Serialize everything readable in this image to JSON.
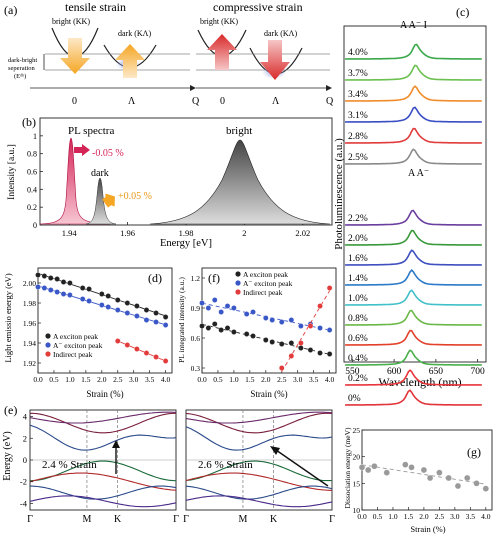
{
  "panel_labels": {
    "a": "(a)",
    "b": "(b)",
    "c": "(c)",
    "d": "(d)",
    "e": "(e)",
    "f": "(f)",
    "g": "(g)"
  },
  "panel_a": {
    "tensile_title": "tensile strain",
    "compressive_title": "compressive strain",
    "bright_label": "bright (KK)",
    "dark_label": "dark (KΛ)",
    "bright_label_right": "bright (KK)",
    "dark_label_right": "dark (KΛ)",
    "sep_label_1": "dark-bright",
    "sep_label_2": "seperation",
    "sep_label_3": "(Eᵈᵇ)",
    "tick_0": "0",
    "tick_lambda": "Λ",
    "tick_q": "Q",
    "tick_0_r": "0",
    "tick_lambda_r": "Λ",
    "tick_q_r": "Q"
  },
  "panel_b": {
    "ylabel": "Intensity [a.u.]",
    "xlabel": "Energy [eV]",
    "pl_label": "PL spectra",
    "dark_label": "dark",
    "bright_label": "bright",
    "minus_label": "-0.05 %",
    "plus_label": "+0.05 %"
  },
  "panel_c": {
    "ylabel": "Photoluminescence (a.u.)",
    "xlabel": "Wavelength (nm)",
    "peak_top": "A  A⁻  I",
    "peak_mid": "A  A⁻",
    "strains": [
      "4.0%",
      "3.7%",
      "3.4%",
      "3.1%",
      "2.8%",
      "2.5%",
      "2.2%",
      "2.0%",
      "1.6%",
      "1.4%",
      "1.0%",
      "0.8%",
      "0.6%",
      "0.4%",
      "0.2%",
      "0%"
    ],
    "colors": [
      "#3aa84a",
      "#6cc050",
      "#f28b2b",
      "#3a4ec4",
      "#e23b3b",
      "#8a8a8a",
      "#6a3e9e",
      "#3a9a3a",
      "#3f4fc0",
      "#2c7ac8",
      "#40c0c8",
      "#6ab848",
      "#e2402a",
      "#4ab04c",
      "#e8343a",
      "#e2343a"
    ],
    "xticks": [
      "550",
      "600",
      "650",
      "700"
    ]
  },
  "chart_data": [
    {
      "type": "line",
      "title": "",
      "xlabel": "Energy [eV]",
      "ylabel": "Intensity [a.u.]",
      "xlim": [
        1.93,
        2.03
      ],
      "ylim": [
        0,
        1.2
      ],
      "xticks": [
        "1.94",
        "1.96",
        "1.98",
        "2",
        "2.02"
      ],
      "yticks": [
        "0",
        "0.2",
        "0.4",
        "0.6",
        "0.8",
        "1"
      ]
    },
    {
      "type": "scatter",
      "xlabel": "Strain (%)",
      "ylabel": "Light emissio energy (eV)",
      "xlim": [
        0,
        4.2
      ],
      "ylim": [
        1.91,
        2.015
      ],
      "xticks": [
        "0.0",
        "0.5",
        "1.0",
        "1.5",
        "2.0",
        "2.5",
        "3.0",
        "3.5",
        "4.0"
      ],
      "yticks": [
        "1.92",
        "1.94",
        "1.96",
        "1.98",
        "2.00"
      ],
      "series": [
        {
          "name": "A exciton peak",
          "color": "#222222",
          "x": [
            0,
            0.2,
            0.4,
            0.6,
            0.8,
            1.0,
            1.4,
            1.6,
            2.0,
            2.2,
            2.5,
            2.8,
            3.1,
            3.4,
            3.7,
            4.0
          ],
          "y": [
            2.008,
            2.007,
            2.005,
            2.004,
            2.001,
            2.0,
            1.995,
            1.994,
            1.989,
            1.987,
            1.983,
            1.98,
            1.977,
            1.973,
            1.97,
            1.966
          ]
        },
        {
          "name": "A⁻ exciton peak",
          "color": "#3a57c8",
          "x": [
            0,
            0.2,
            0.4,
            0.6,
            0.8,
            1.0,
            1.4,
            1.6,
            2.0,
            2.2,
            2.5,
            2.8,
            3.1,
            3.4,
            3.7,
            4.0
          ],
          "y": [
            1.996,
            1.995,
            1.993,
            1.991,
            1.989,
            1.988,
            1.984,
            1.982,
            1.978,
            1.976,
            1.973,
            1.97,
            1.967,
            1.963,
            1.961,
            1.958
          ]
        },
        {
          "name": "Indirect peak",
          "color": "#e23b3b",
          "x": [
            2.5,
            2.8,
            3.1,
            3.4,
            3.7,
            4.0
          ],
          "y": [
            1.942,
            1.938,
            1.934,
            1.93,
            1.926,
            1.922
          ]
        }
      ]
    },
    {
      "type": "scatter",
      "xlabel": "Strain (%)",
      "ylabel": "PL integrated intensity (a.u.)",
      "xlim": [
        0,
        4.2
      ],
      "ylim": [
        0.25,
        1.3
      ],
      "xticks": [
        "0.0",
        "0.5",
        "1.0",
        "1.5",
        "2.0",
        "2.5",
        "3.0",
        "3.5",
        "4.0"
      ],
      "yticks": [
        "0.3",
        "0.6",
        "0.9",
        "1.2"
      ],
      "series": [
        {
          "name": "A exciton peak",
          "color": "#222222",
          "x": [
            0,
            0.2,
            0.4,
            0.6,
            0.8,
            1.0,
            1.4,
            1.6,
            2.0,
            2.2,
            2.5,
            2.8,
            3.1,
            3.4,
            3.7,
            4.0
          ],
          "y": [
            0.72,
            0.7,
            0.74,
            0.68,
            0.7,
            0.66,
            0.64,
            0.62,
            0.58,
            0.56,
            0.54,
            0.55,
            0.5,
            0.48,
            0.45,
            0.44
          ]
        },
        {
          "name": "A⁻ exciton peak",
          "color": "#3a57c8",
          "x": [
            0,
            0.2,
            0.4,
            0.6,
            0.8,
            1.0,
            1.4,
            1.6,
            2.0,
            2.2,
            2.5,
            2.8,
            3.1,
            3.4,
            3.7,
            4.0
          ],
          "y": [
            0.95,
            0.9,
            0.98,
            0.86,
            0.92,
            0.9,
            0.84,
            0.86,
            0.8,
            0.78,
            0.76,
            0.78,
            0.72,
            0.74,
            0.7,
            0.68
          ]
        },
        {
          "name": "Indirect peak",
          "color": "#e23b3b",
          "x": [
            2.5,
            2.8,
            3.1,
            3.4,
            3.7,
            4.0
          ],
          "y": [
            0.3,
            0.42,
            0.55,
            0.72,
            0.92,
            1.1
          ]
        }
      ]
    },
    {
      "type": "scatter",
      "xlabel": "Strain (%)",
      "ylabel": "Dissociation energy (meV)",
      "xlim": [
        0,
        4.2
      ],
      "ylim": [
        10,
        25
      ],
      "xticks": [
        "0.0",
        "0.5",
        "1.0",
        "1.5",
        "2.0",
        "2.5",
        "3.0",
        "3.5",
        "4.0"
      ],
      "yticks": [
        "10",
        "15",
        "20",
        "25"
      ],
      "series": [
        {
          "name": "",
          "color": "#9a9a9a",
          "x": [
            0,
            0.2,
            0.4,
            0.8,
            1.4,
            1.6,
            2.0,
            2.2,
            2.5,
            2.8,
            3.1,
            3.4,
            3.7,
            4.0
          ],
          "y": [
            18,
            17.5,
            18.2,
            17,
            18.5,
            18,
            17.5,
            16,
            17,
            16,
            14.5,
            16,
            15,
            14
          ]
        }
      ]
    }
  ],
  "panel_e": {
    "ylabel": "Energy (eV)",
    "left_label": "2.4 % Strain",
    "right_label": "2.6 % Strain",
    "kpoints": [
      "Γ",
      "M",
      "K",
      "Γ"
    ],
    "yticks": [
      "4",
      "2",
      "0",
      "-2",
      "-4"
    ]
  }
}
